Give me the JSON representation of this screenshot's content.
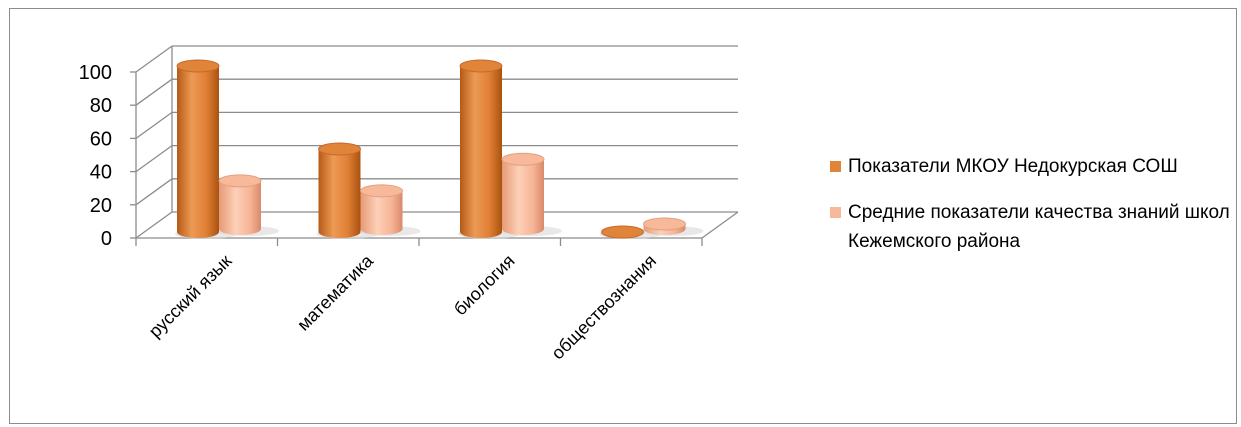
{
  "chart_data": {
    "type": "bar",
    "categories": [
      "русский язык",
      "математика",
      "биология",
      "обществознания"
    ],
    "series": [
      {
        "name": "Показатели МКОУ Недокурская СОШ",
        "values": [
          100,
          50,
          100,
          0
        ],
        "color": "#e0843a"
      },
      {
        "name": "Средние показатели качества знаний школ Кежемского района",
        "values": [
          29,
          23,
          42,
          3
        ],
        "color": "#f8b99a"
      }
    ],
    "yticks": [
      0,
      20,
      40,
      60,
      80,
      100
    ],
    "ylim": [
      0,
      100
    ],
    "grid": true,
    "legend_position": "right",
    "title": "",
    "xlabel": "",
    "ylabel": ""
  }
}
